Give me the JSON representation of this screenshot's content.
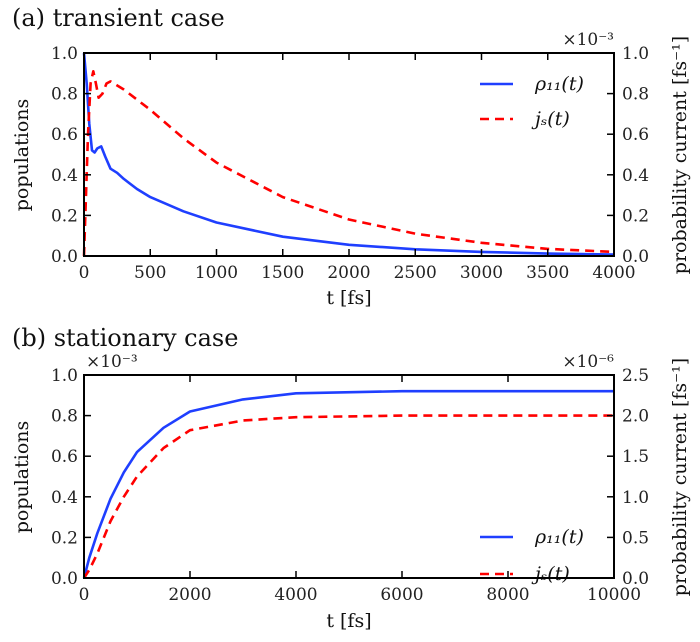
{
  "chart_data": [
    {
      "type": "line",
      "title": "(a) transient case",
      "xlabel": "t [fs]",
      "ylabel": "populations",
      "ylabel_right": "probability current [fs⁻¹]",
      "xlim": [
        0,
        4000
      ],
      "ylim": [
        0,
        1.0
      ],
      "ylim_right": [
        0,
        1.0
      ],
      "left_multiplier": "",
      "right_multiplier": "×10⁻³",
      "xticks": [
        "0",
        "500",
        "1000",
        "1500",
        "2000",
        "2500",
        "3000",
        "3500",
        "4000"
      ],
      "yticks": [
        "0.0",
        "0.2",
        "0.4",
        "0.6",
        "0.8",
        "1.0"
      ],
      "yticks_right": [
        "0.0",
        "0.2",
        "0.4",
        "0.6",
        "0.8",
        "1.0"
      ],
      "grid": false,
      "legend_position": "top-right",
      "series": [
        {
          "name": "ρ₁₁(t)",
          "axis": "left",
          "color": "#1f3fff",
          "style": "solid",
          "x": [
            0,
            20,
            40,
            60,
            80,
            100,
            130,
            160,
            200,
            250,
            300,
            400,
            500,
            750,
            1000,
            1500,
            2000,
            2500,
            3000,
            3500,
            4000
          ],
          "y": [
            1.0,
            0.85,
            0.65,
            0.52,
            0.51,
            0.53,
            0.54,
            0.49,
            0.43,
            0.41,
            0.38,
            0.33,
            0.29,
            0.22,
            0.165,
            0.095,
            0.055,
            0.033,
            0.02,
            0.012,
            0.007
          ]
        },
        {
          "name": "jₛ(t)",
          "axis": "right",
          "color": "#ff0000",
          "style": "dashed",
          "x": [
            0,
            15,
            30,
            50,
            70,
            90,
            110,
            140,
            170,
            200,
            300,
            500,
            750,
            1000,
            1500,
            2000,
            2500,
            3000,
            3500,
            4000
          ],
          "y": [
            0,
            0.3,
            0.6,
            0.85,
            0.91,
            0.85,
            0.78,
            0.8,
            0.85,
            0.86,
            0.82,
            0.72,
            0.58,
            0.46,
            0.29,
            0.18,
            0.11,
            0.065,
            0.035,
            0.02
          ]
        }
      ]
    },
    {
      "type": "line",
      "title": "(b) stationary case",
      "xlabel": "t [fs]",
      "ylabel": "populations",
      "ylabel_right": "probability current [fs⁻¹]",
      "xlim": [
        0,
        10000
      ],
      "ylim": [
        0,
        1.0
      ],
      "ylim_right": [
        0,
        2.5
      ],
      "left_multiplier": "×10⁻³",
      "right_multiplier": "×10⁻⁶",
      "xticks": [
        "0",
        "2000",
        "4000",
        "6000",
        "8000",
        "10000"
      ],
      "yticks": [
        "0.0",
        "0.2",
        "0.4",
        "0.6",
        "0.8",
        "1.0"
      ],
      "yticks_right": [
        "0.0",
        "0.5",
        "1.0",
        "1.5",
        "2.0",
        "2.5"
      ],
      "grid": false,
      "legend_position": "lower-right",
      "series": [
        {
          "name": "ρ₁₁(t)",
          "axis": "left",
          "color": "#1f3fff",
          "style": "solid",
          "x": [
            0,
            100,
            250,
            500,
            750,
            1000,
            1500,
            2000,
            3000,
            4000,
            6000,
            8000,
            10000
          ],
          "y": [
            0,
            0.1,
            0.22,
            0.39,
            0.52,
            0.62,
            0.74,
            0.82,
            0.88,
            0.91,
            0.92,
            0.92,
            0.92
          ]
        },
        {
          "name": "jₛ(t)",
          "axis": "right",
          "color": "#ff0000",
          "style": "dashed",
          "x": [
            0,
            100,
            250,
            500,
            750,
            1000,
            1500,
            2000,
            3000,
            4000,
            6000,
            8000,
            10000
          ],
          "y": [
            0,
            0.1,
            0.3,
            0.7,
            1.0,
            1.25,
            1.6,
            1.82,
            1.94,
            1.98,
            2.0,
            2.0,
            2.0
          ]
        }
      ]
    }
  ]
}
